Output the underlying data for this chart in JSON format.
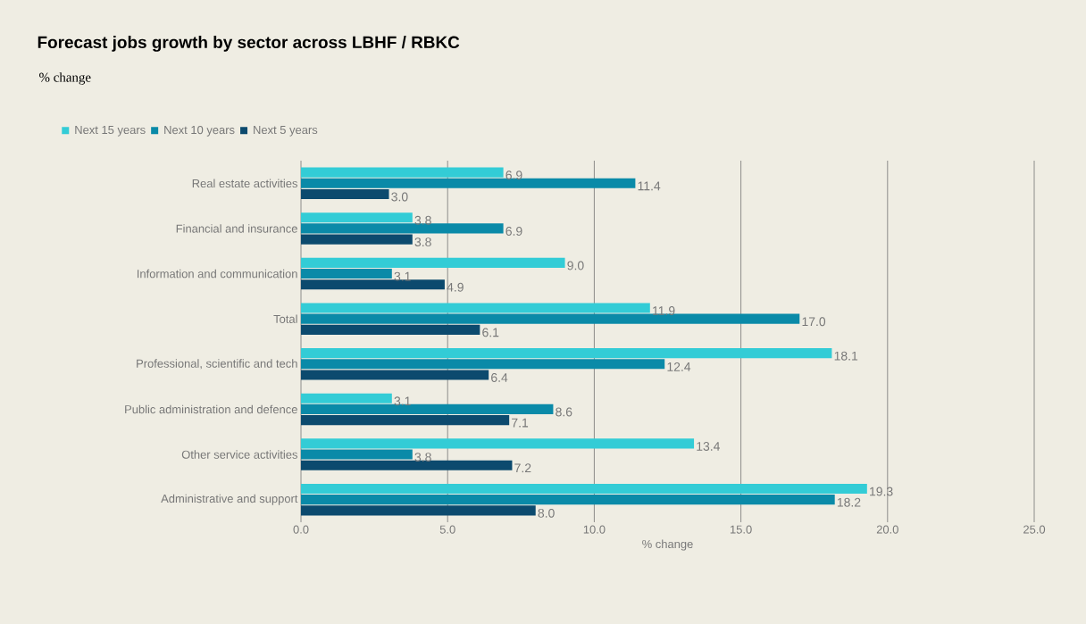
{
  "chart_data": {
    "type": "bar",
    "orientation": "horizontal",
    "title": "Forecast jobs growth by sector across LBHF / RBKC",
    "subtitle": "% change",
    "xlabel": "% change",
    "categories": [
      "Real estate activities",
      "Financial and insurance",
      "Information and communication",
      "Total",
      "Professional, scientific and tech",
      "Public administration and defence",
      "Other service activities",
      "Administrative and support"
    ],
    "series": [
      {
        "name": "Next 15 years",
        "color": "#33ccd6",
        "values": [
          6.9,
          3.8,
          9.0,
          11.9,
          18.1,
          3.1,
          13.4,
          19.3
        ],
        "value_labels": [
          "6.9",
          "3.8",
          "9.0",
          "11.9",
          "18.1",
          "3.1",
          "13.4",
          "19.3"
        ]
      },
      {
        "name": "Next 10 years",
        "color": "#0a8aa8",
        "values": [
          11.4,
          6.9,
          3.1,
          17.0,
          12.4,
          8.6,
          3.8,
          18.2
        ],
        "value_labels": [
          "11.4",
          "6.9",
          "3.1",
          "17.0",
          "12.4",
          "8.6",
          "3.8",
          "18.2"
        ]
      },
      {
        "name": "Next 5 years",
        "color": "#0c4a6e",
        "values": [
          3.0,
          3.8,
          4.9,
          6.1,
          6.4,
          7.1,
          7.2,
          8.0
        ],
        "value_labels": [
          "3.0",
          "3.8",
          "4.9",
          "6.1",
          "6.4",
          "7.1",
          "7.2",
          "8.0"
        ]
      }
    ],
    "xlim": [
      0,
      25
    ],
    "xticks": [
      {
        "value": 0,
        "label": "0.0"
      },
      {
        "value": 5,
        "label": "5.0"
      },
      {
        "value": 10,
        "label": "10.0"
      },
      {
        "value": 15,
        "label": "15.0"
      },
      {
        "value": 20,
        "label": "20.0"
      },
      {
        "value": 25,
        "label": "25.0"
      }
    ],
    "grid": "x",
    "legend": "top left"
  }
}
